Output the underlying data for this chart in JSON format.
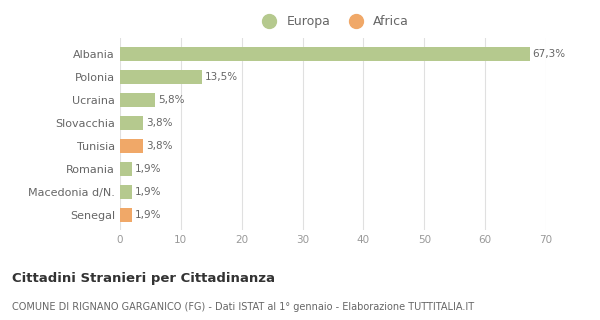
{
  "categories": [
    "Albania",
    "Polonia",
    "Ucraina",
    "Slovacchia",
    "Tunisia",
    "Romania",
    "Macedonia d/N.",
    "Senegal"
  ],
  "values": [
    67.3,
    13.5,
    5.8,
    3.8,
    3.8,
    1.9,
    1.9,
    1.9
  ],
  "labels": [
    "67,3%",
    "13,5%",
    "5,8%",
    "3,8%",
    "3,8%",
    "1,9%",
    "1,9%",
    "1,9%"
  ],
  "colors": [
    "#b5c98e",
    "#b5c98e",
    "#b5c98e",
    "#b5c98e",
    "#f0a868",
    "#b5c98e",
    "#b5c98e",
    "#f0a868"
  ],
  "legend_europa_color": "#b5c98e",
  "legend_africa_color": "#f0a868",
  "xlim": [
    0,
    70
  ],
  "xticks": [
    0,
    10,
    20,
    30,
    40,
    50,
    60,
    70
  ],
  "title_main": "Cittadini Stranieri per Cittadinanza",
  "title_sub": "COMUNE DI RIGNANO GARGANICO (FG) - Dati ISTAT al 1° gennaio - Elaborazione TUTTITALIA.IT",
  "background_color": "#ffffff",
  "grid_color": "#e0e0e0",
  "label_color": "#666666",
  "tick_color": "#999999"
}
